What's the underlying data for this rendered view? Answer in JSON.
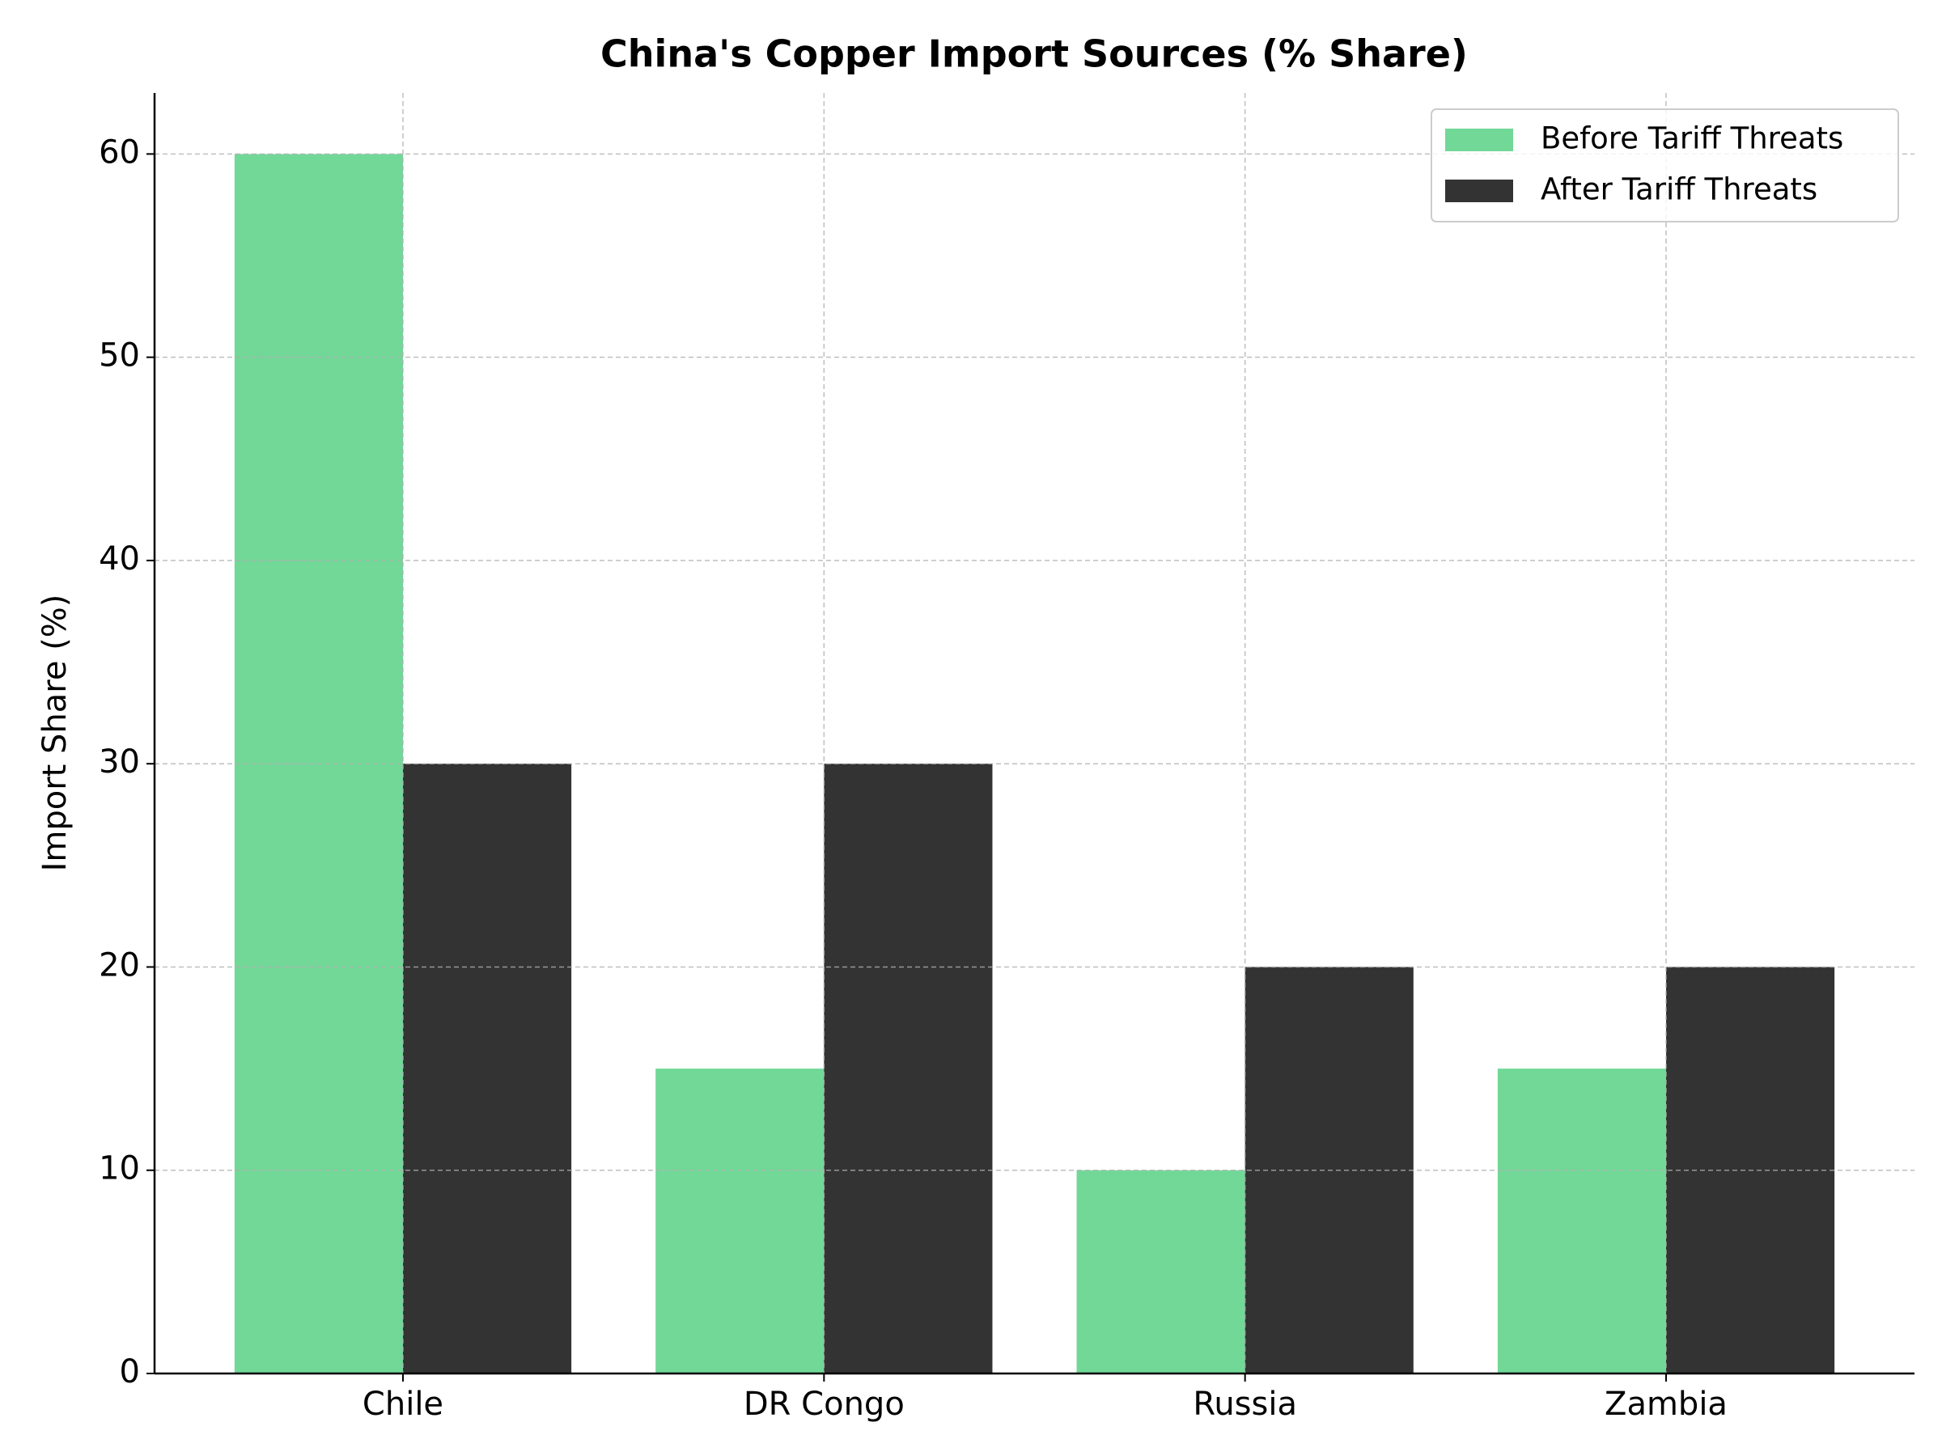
{
  "chart_data": {
    "type": "bar",
    "title": "China's Copper Import Sources (% Share)",
    "ylabel": "Import Share (%)",
    "categories": [
      "Chile",
      "DR Congo",
      "Russia",
      "Zambia"
    ],
    "series": [
      {
        "name": "Before Tariff Threats",
        "color": "#71d897",
        "values": [
          60,
          15,
          10,
          15
        ]
      },
      {
        "name": "After Tariff Threats",
        "color": "#333333",
        "values": [
          30,
          30,
          20,
          20
        ]
      }
    ],
    "ylim": [
      0,
      63
    ],
    "yticks": [
      0,
      10,
      20,
      30,
      40,
      50,
      60
    ],
    "grid": true,
    "legend": "upper right"
  }
}
